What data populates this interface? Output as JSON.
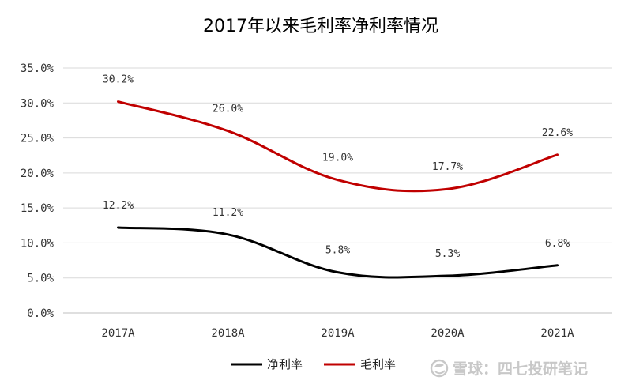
{
  "chart_data": {
    "type": "line",
    "title": "2017年以来毛利率净利率情况",
    "categories": [
      "2017A",
      "2018A",
      "2019A",
      "2020A",
      "2021A"
    ],
    "ylim": [
      0,
      35
    ],
    "yticks": [
      "0.0%",
      "5.0%",
      "10.0%",
      "15.0%",
      "20.0%",
      "25.0%",
      "30.0%",
      "35.0%"
    ],
    "grid": "horizontal",
    "legend_position": "bottom",
    "series": [
      {
        "name": "净利率",
        "color": "#000000",
        "values": [
          12.2,
          11.2,
          5.8,
          5.3,
          6.8
        ],
        "labels": [
          "12.2%",
          "11.2%",
          "5.8%",
          "5.3%",
          "6.8%"
        ]
      },
      {
        "name": "毛利率",
        "color": "#c00000",
        "values": [
          30.2,
          26.0,
          19.0,
          17.7,
          22.6
        ],
        "labels": [
          "30.2%",
          "26.0%",
          "19.0%",
          "17.7%",
          "22.6%"
        ]
      }
    ]
  },
  "watermark": {
    "text": "雪球：四七投研笔记",
    "icon": "snowball-logo-icon"
  }
}
